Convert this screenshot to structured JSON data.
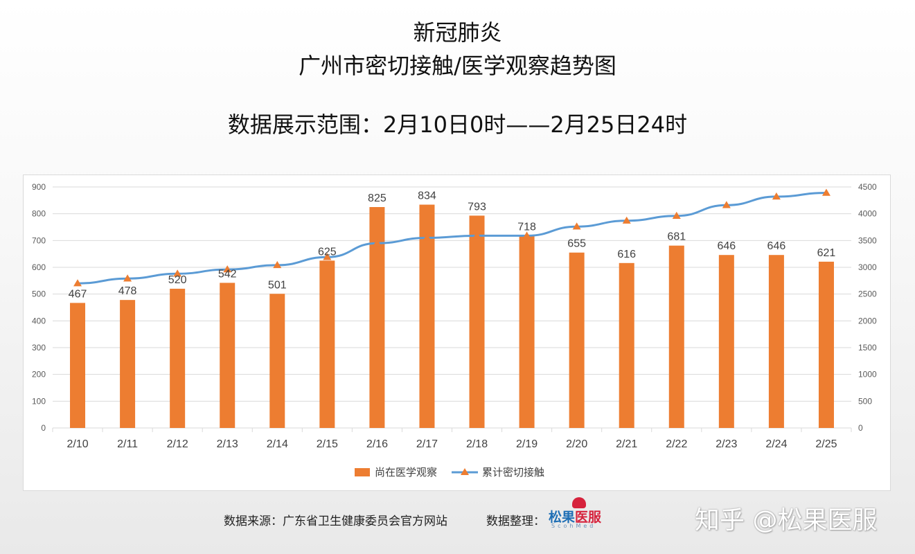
{
  "header": {
    "title_line1": "新冠肺炎",
    "title_line2": "广州市密切接触/医学观察趋势图",
    "subtitle": "数据展示范围：2月10日0时——2月25日24时"
  },
  "footer": {
    "source_text": "数据来源：广东省卫生健康委员会官方网站",
    "arranged_label": "数据整理：",
    "logo_text_a": "松果",
    "logo_text_b": "医服",
    "logo_sub": "ScohMed",
    "watermark": "知乎 @松果医服"
  },
  "colors": {
    "bar": "#ed7d31",
    "line": "#5b9bd5",
    "marker": "#ed7d31",
    "grid": "#d9d9d9",
    "axis_text": "#595959"
  },
  "chart_data": {
    "type": "bar",
    "categories": [
      "2/10",
      "2/11",
      "2/12",
      "2/13",
      "2/14",
      "2/15",
      "2/16",
      "2/17",
      "2/18",
      "2/19",
      "2/20",
      "2/21",
      "2/22",
      "2/23",
      "2/24",
      "2/25"
    ],
    "series": [
      {
        "name": "尚在医学观察",
        "type": "bar",
        "axis": "left",
        "values": [
          467,
          478,
          520,
          542,
          501,
          625,
          825,
          834,
          793,
          718,
          655,
          616,
          681,
          646,
          646,
          621
        ],
        "data_labels": [
          "467",
          "478",
          "520",
          "542",
          "501",
          "625",
          "825",
          "834",
          "793",
          "718",
          "655",
          "616",
          "681",
          "646",
          "646",
          "621"
        ]
      },
      {
        "name": "累计密切接触",
        "type": "line",
        "axis": "right",
        "values": [
          2700,
          2790,
          2880,
          2960,
          3040,
          3190,
          3450,
          3550,
          3590,
          3590,
          3760,
          3870,
          3960,
          4160,
          4320,
          4390
        ]
      }
    ],
    "y_left": {
      "min": 0,
      "max": 900,
      "step": 100,
      "ticks": [
        "0",
        "100",
        "200",
        "300",
        "400",
        "500",
        "600",
        "700",
        "800",
        "900"
      ]
    },
    "y_right": {
      "min": 0,
      "max": 4500,
      "step": 500,
      "ticks": [
        "0",
        "500",
        "1000",
        "1500",
        "2000",
        "2500",
        "3000",
        "3500",
        "4000",
        "4500"
      ]
    },
    "grid": true,
    "legend_position": "bottom"
  }
}
